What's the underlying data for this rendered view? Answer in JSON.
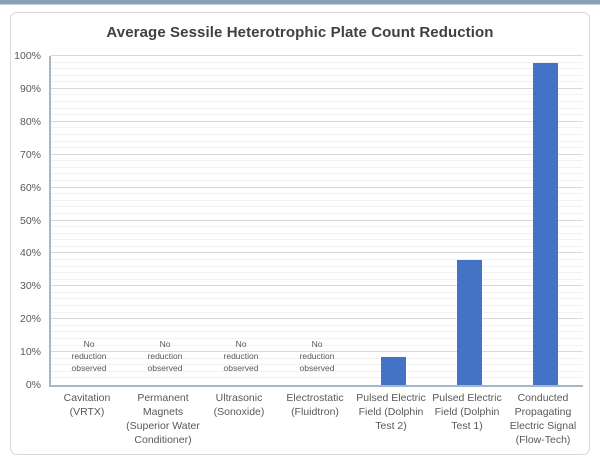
{
  "window": {
    "top_strip_color": "#8AA0B6"
  },
  "chart_data": {
    "type": "bar",
    "title": "Average Sessile Heterotrophic Plate Count Reduction",
    "categories": [
      "Cavitation (VRTX)",
      "Permanent Magnets (Superior Water Conditioner)",
      "Ultrasonic (Sonoxide)",
      "Electrostatic (Fluidtron)",
      "Pulsed Electric Field (Dolphin Test 2)",
      "Pulsed Electric Field (Dolphin Test 1)",
      "Conducted Propagating Electric Signal (Flow-Tech)"
    ],
    "values": [
      0,
      0,
      0,
      0,
      8.5,
      38,
      98
    ],
    "bar_annotations": [
      "No reduction observed",
      "No reduction observed",
      "No reduction observed",
      "No reduction observed",
      "",
      "",
      ""
    ],
    "y_tick_labels": [
      "0%",
      "10%",
      "20%",
      "30%",
      "40%",
      "50%",
      "60%",
      "70%",
      "80%",
      "90%",
      "100%"
    ],
    "ylim": [
      0,
      100
    ],
    "y_major_step": 10,
    "y_minor_step": 2,
    "xlabel": "",
    "ylabel": "",
    "legend": "none",
    "grid": "horizontal, major and minor",
    "colors": {
      "bar": "#4472C4",
      "title_text": "#404040",
      "axis_text": "#595959",
      "major_gridline": "#D9D9D9",
      "minor_gridline": "#F1F1F1",
      "axis_line": "#A6B7CA",
      "chart_border": "#D9D9D9"
    }
  }
}
